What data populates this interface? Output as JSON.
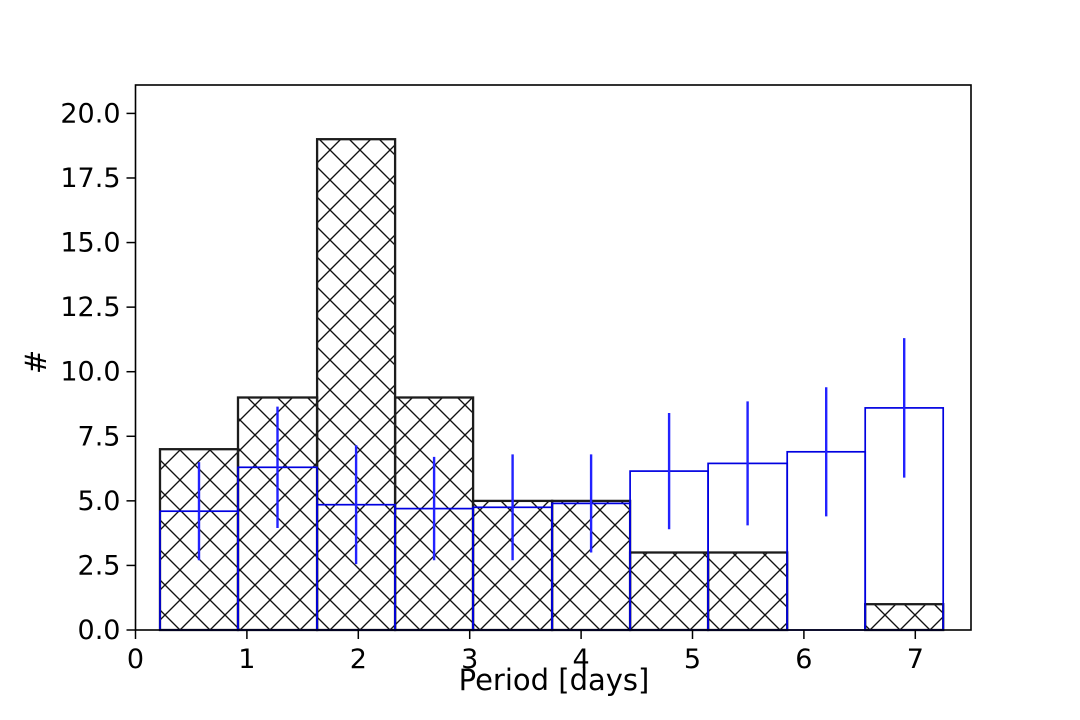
{
  "figure": {
    "background_color": "#ffffff",
    "xlabel": "Period [days]",
    "ylabel": "#"
  },
  "chart_data": {
    "type": "bar",
    "subtype": "histogram-overlay",
    "title": "",
    "xlabel": "Period [days]",
    "ylabel": "#",
    "xlim": [
      0,
      7.5
    ],
    "ylim": [
      0,
      21.1
    ],
    "grid": false,
    "legend_position": "none",
    "x_tick_labels": [
      "0",
      "1",
      "2",
      "3",
      "4",
      "5",
      "6",
      "7"
    ],
    "x_tick_values": [
      0,
      1,
      2,
      3,
      4,
      5,
      6,
      7
    ],
    "y_tick_labels": [
      "0.0",
      "2.5",
      "5.0",
      "7.5",
      "10.0",
      "12.5",
      "15.0",
      "17.5",
      "20.0"
    ],
    "y_tick_values": [
      0,
      2.5,
      5,
      7.5,
      10,
      12.5,
      15,
      17.5,
      20
    ],
    "bin_edges": [
      0.22,
      0.92,
      1.63,
      2.33,
      3.03,
      3.74,
      4.44,
      5.14,
      5.85,
      6.55,
      7.25
    ],
    "series": [
      {
        "name": "hatched-histogram",
        "style": "hatched-bar",
        "hatch": "xx",
        "edge_color": "#1c1c1c",
        "hatch_color": "#111111",
        "values": [
          7,
          9,
          19,
          9,
          5,
          5,
          3,
          3,
          0,
          1
        ]
      },
      {
        "name": "outline-histogram-with-errorbars",
        "style": "outline-bar",
        "edge_color": "#0000e0",
        "errorbar_color": "#2222ff",
        "values": [
          4.6,
          6.3,
          4.85,
          4.7,
          4.75,
          4.9,
          6.15,
          6.45,
          6.9,
          8.6
        ],
        "errors": [
          1.9,
          2.35,
          2.3,
          2.0,
          2.05,
          1.9,
          2.25,
          2.4,
          2.5,
          2.7
        ]
      }
    ],
    "colors": {
      "spine": "#000000",
      "tick_text": "#000000"
    }
  }
}
